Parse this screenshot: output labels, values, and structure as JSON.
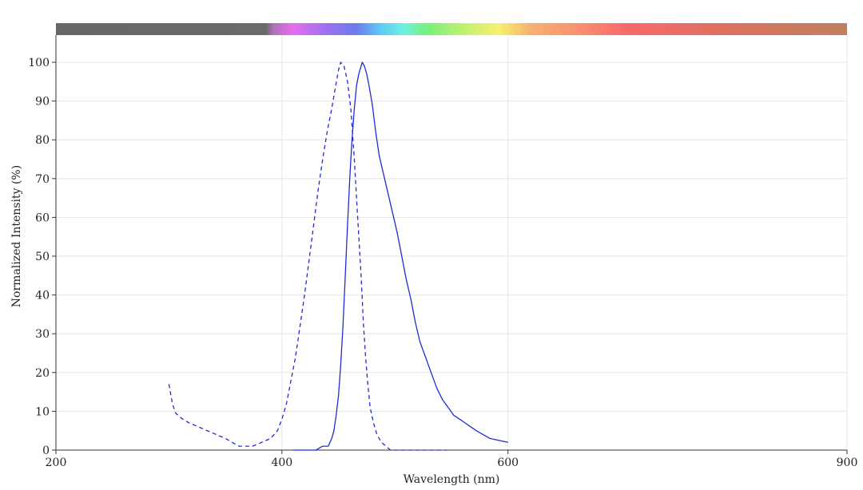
{
  "chart_data": {
    "type": "line",
    "title": "",
    "xlabel": "Wavelength (nm)",
    "ylabel": "Normalized Intensity (%)",
    "xlim": [
      200,
      900
    ],
    "ylim": [
      0,
      107
    ],
    "x_ticks": [
      "200",
      "400",
      "600",
      "900"
    ],
    "y_ticks": [
      "0",
      "10",
      "20",
      "30",
      "40",
      "50",
      "60",
      "70",
      "80",
      "90",
      "100"
    ],
    "grid": true,
    "legend": "none",
    "spectrum_bar": true,
    "series": [
      {
        "style": "dashed",
        "color": "#1f2bd6",
        "points": [
          [
            300,
            17
          ],
          [
            303,
            12
          ],
          [
            306,
            9.5
          ],
          [
            312,
            8
          ],
          [
            318,
            7
          ],
          [
            326,
            6
          ],
          [
            334,
            5
          ],
          [
            342,
            4
          ],
          [
            350,
            3
          ],
          [
            356,
            2
          ],
          [
            362,
            1
          ],
          [
            374,
            1
          ],
          [
            382,
            2
          ],
          [
            390,
            3
          ],
          [
            396,
            5
          ],
          [
            400,
            8
          ],
          [
            404,
            12
          ],
          [
            408,
            18
          ],
          [
            412,
            24
          ],
          [
            416,
            32
          ],
          [
            420,
            40
          ],
          [
            424,
            49
          ],
          [
            428,
            58
          ],
          [
            432,
            67
          ],
          [
            436,
            75
          ],
          [
            440,
            82
          ],
          [
            444,
            88
          ],
          [
            447,
            93
          ],
          [
            450,
            98
          ],
          [
            452,
            100
          ],
          [
            455,
            99
          ],
          [
            458,
            95
          ],
          [
            461,
            88
          ],
          [
            464,
            75
          ],
          [
            467,
            60
          ],
          [
            470,
            45
          ],
          [
            472,
            33
          ],
          [
            474,
            24
          ],
          [
            476,
            17
          ],
          [
            478,
            11
          ],
          [
            481,
            7
          ],
          [
            484,
            4
          ],
          [
            488,
            2
          ],
          [
            492,
            1
          ],
          [
            496,
            0
          ],
          [
            520,
            0
          ],
          [
            546,
            0
          ]
        ]
      },
      {
        "style": "solid",
        "color": "#1f2bd6",
        "points": [
          [
            410,
            0
          ],
          [
            430,
            0
          ],
          [
            436,
            1
          ],
          [
            441,
            1
          ],
          [
            444,
            3
          ],
          [
            446,
            5
          ],
          [
            448,
            9
          ],
          [
            450,
            14
          ],
          [
            452,
            22
          ],
          [
            454,
            32
          ],
          [
            456,
            45
          ],
          [
            458,
            58
          ],
          [
            460,
            70
          ],
          [
            462,
            80
          ],
          [
            464,
            88
          ],
          [
            466,
            94
          ],
          [
            468,
            97
          ],
          [
            470,
            99
          ],
          [
            471,
            100
          ],
          [
            473,
            99
          ],
          [
            475,
            97
          ],
          [
            477,
            94
          ],
          [
            480,
            89
          ],
          [
            483,
            82
          ],
          [
            486,
            76
          ],
          [
            490,
            71
          ],
          [
            494,
            66
          ],
          [
            498,
            61
          ],
          [
            502,
            56
          ],
          [
            506,
            50
          ],
          [
            510,
            44
          ],
          [
            514,
            39
          ],
          [
            518,
            33
          ],
          [
            522,
            28
          ],
          [
            527,
            24
          ],
          [
            532,
            20
          ],
          [
            537,
            16
          ],
          [
            542,
            13
          ],
          [
            547,
            11
          ],
          [
            552,
            9
          ],
          [
            557,
            8
          ],
          [
            562,
            7
          ],
          [
            567,
            6
          ],
          [
            572,
            5
          ],
          [
            578,
            4
          ],
          [
            584,
            3
          ],
          [
            592,
            2.5
          ],
          [
            600,
            2
          ]
        ]
      }
    ]
  }
}
